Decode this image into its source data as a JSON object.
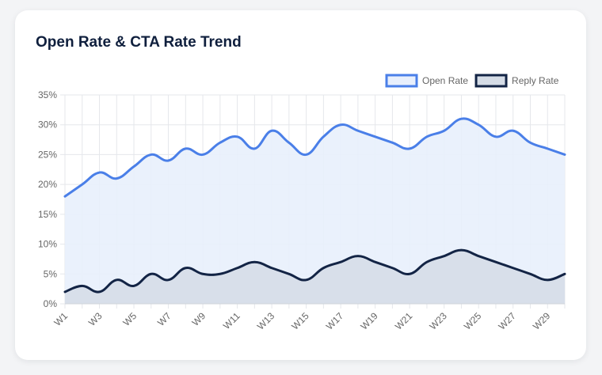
{
  "card": {
    "title": "Open Rate & CTA Rate Trend"
  },
  "chart_data": {
    "type": "area",
    "title": "Open Rate & CTA Rate Trend",
    "xlabel": "",
    "ylabel": "",
    "ylim": [
      0,
      35
    ],
    "y_ticks": [
      "0%",
      "5%",
      "10%",
      "15%",
      "20%",
      "25%",
      "30%",
      "35%"
    ],
    "x_tick_labels": [
      "W1",
      "W3",
      "W5",
      "W7",
      "W9",
      "W11",
      "W13",
      "W15",
      "W17",
      "W19",
      "W21",
      "W23",
      "W25",
      "W27",
      "W29"
    ],
    "categories": [
      "W1",
      "W2",
      "W3",
      "W4",
      "W5",
      "W6",
      "W7",
      "W8",
      "W9",
      "W10",
      "W11",
      "W12",
      "W13",
      "W14",
      "W15",
      "W16",
      "W17",
      "W18",
      "W19",
      "W20",
      "W21",
      "W22",
      "W23",
      "W24",
      "W25",
      "W26",
      "W27",
      "W28",
      "W29",
      "W30"
    ],
    "legend_position": "top-right",
    "grid": true,
    "series": [
      {
        "name": "Open Rate",
        "color": "#4a7fe8",
        "fill": "#e8effc",
        "values": [
          18,
          20,
          22,
          21,
          23,
          25,
          24,
          26,
          25,
          27,
          28,
          26,
          29,
          27,
          25,
          28,
          30,
          29,
          28,
          27,
          26,
          28,
          29,
          31,
          30,
          28,
          29,
          27,
          26,
          25
        ]
      },
      {
        "name": "Reply Rate",
        "color": "#132445",
        "fill": "#d5dce6",
        "values": [
          2,
          3,
          2,
          4,
          3,
          5,
          4,
          6,
          5,
          5,
          6,
          7,
          6,
          5,
          4,
          6,
          7,
          8,
          7,
          6,
          5,
          7,
          8,
          9,
          8,
          7,
          6,
          5,
          4,
          5
        ]
      }
    ]
  }
}
